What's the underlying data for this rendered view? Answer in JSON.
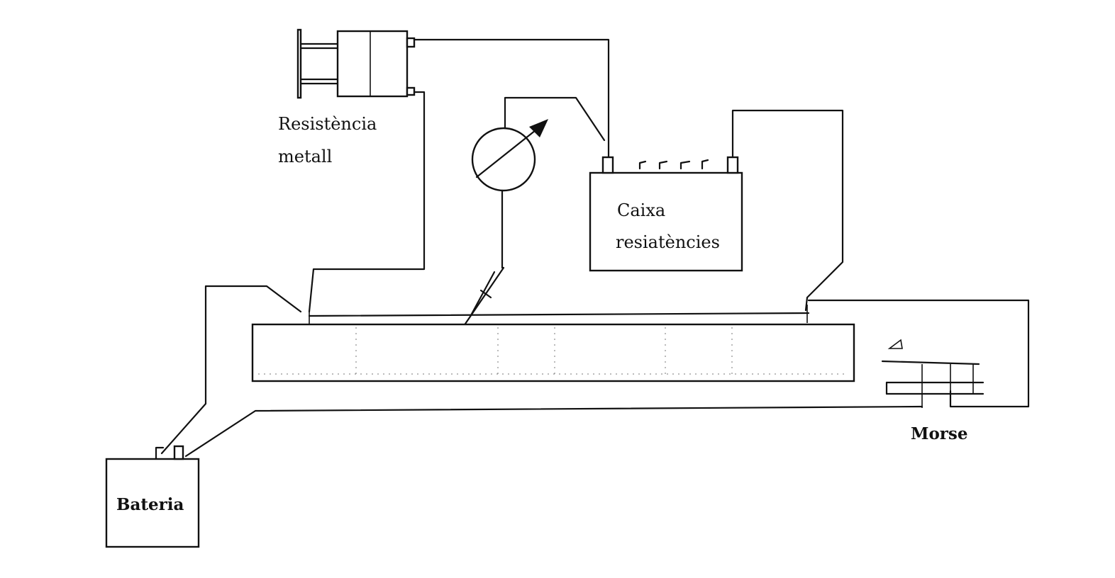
{
  "labels": {
    "metal_resistance_line1": "Resistència",
    "metal_resistance_line2": "metall",
    "resistance_box_line1": "Caixa",
    "resistance_box_line2": "resiatències",
    "battery": "Bateria",
    "morse": "Morse"
  }
}
